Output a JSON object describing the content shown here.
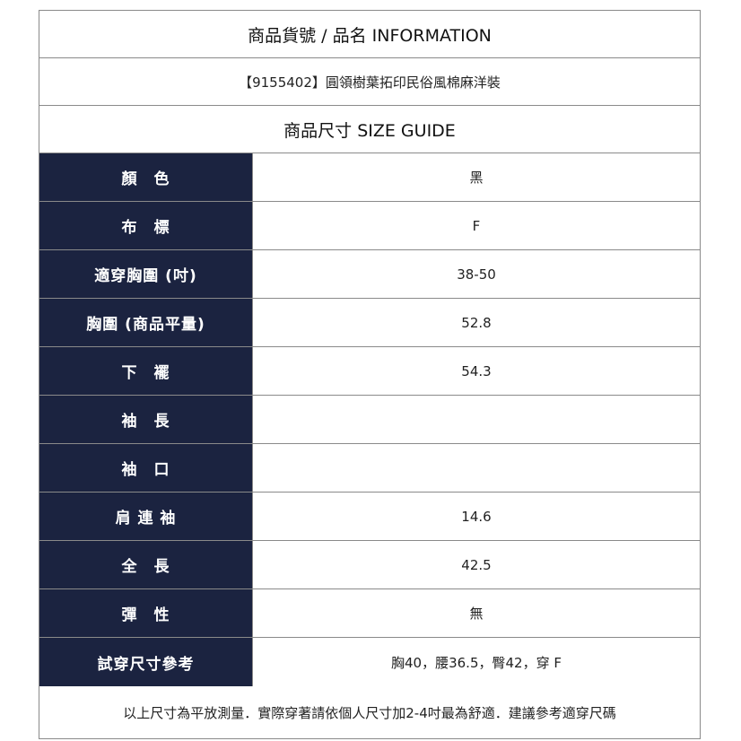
{
  "header": {
    "title": "商品貨號 / 品名 INFORMATION",
    "product": "【9155402】圓領樹葉拓印民俗風棉麻洋裝",
    "size_guide": "商品尺寸 SIZE GUIDE"
  },
  "rows": [
    {
      "label": "顏　色",
      "value": "黑"
    },
    {
      "label": "布　標",
      "value": "F"
    },
    {
      "label": "適穿胸圍 (吋)",
      "value": "38-50"
    },
    {
      "label": "胸圍 (商品平量)",
      "value": "52.8"
    },
    {
      "label": "下　襬",
      "value": "54.3"
    },
    {
      "label": "袖　長",
      "value": ""
    },
    {
      "label": "袖　口",
      "value": ""
    },
    {
      "label": "肩 連 袖",
      "value": "14.6"
    },
    {
      "label": "全　長",
      "value": "42.5"
    },
    {
      "label": "彈　性",
      "value": "無"
    },
    {
      "label": "試穿尺寸參考",
      "value": "胸40，腰36.5，臀42，穿 F"
    }
  ],
  "footer": "以上尺寸為平放測量．實際穿著請依個人尺寸加2-4吋最為舒適．建議參考適穿尺碼",
  "colors": {
    "label_bg": "#1b2340",
    "border": "#8a8a8a"
  }
}
